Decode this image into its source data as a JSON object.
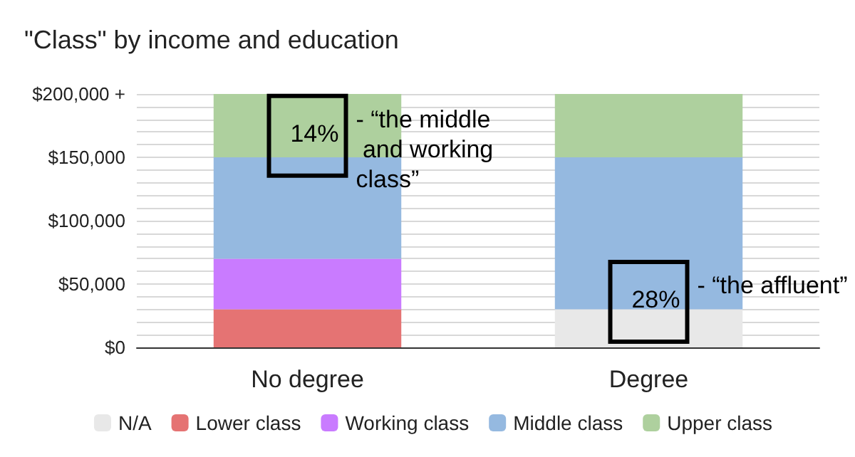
{
  "chart_data": {
    "type": "bar",
    "title": "\"Class\" by income and education",
    "stacked": true,
    "categories": [
      "No degree",
      "Degree"
    ],
    "series": [
      {
        "name": "N/A",
        "color": "#e8e8e8",
        "values": [
          0,
          30000
        ]
      },
      {
        "name": "Lower class",
        "color": "#e57373",
        "values": [
          30000,
          0
        ]
      },
      {
        "name": "Working class",
        "color": "#c97bff",
        "values": [
          40000,
          0
        ]
      },
      {
        "name": "Middle class",
        "color": "#95b9e0",
        "values": [
          80000,
          120000
        ]
      },
      {
        "name": "Upper class",
        "color": "#aed09e",
        "values": [
          50000,
          50000
        ]
      }
    ],
    "ylim": [
      0,
      200000
    ],
    "yticks": [
      {
        "value": 0,
        "label": "$0"
      },
      {
        "value": 10000,
        "label": null
      },
      {
        "value": 20000,
        "label": null
      },
      {
        "value": 30000,
        "label": null
      },
      {
        "value": 40000,
        "label": null
      },
      {
        "value": 50000,
        "label": "$50,000"
      },
      {
        "value": 60000,
        "label": null
      },
      {
        "value": 70000,
        "label": null
      },
      {
        "value": 80000,
        "label": null
      },
      {
        "value": 90000,
        "label": null
      },
      {
        "value": 100000,
        "label": "$100,000"
      },
      {
        "value": 110000,
        "label": null
      },
      {
        "value": 120000,
        "label": null
      },
      {
        "value": 130000,
        "label": null
      },
      {
        "value": 140000,
        "label": null
      },
      {
        "value": 150000,
        "label": "$150,000"
      },
      {
        "value": 160000,
        "label": null
      },
      {
        "value": 170000,
        "label": null
      },
      {
        "value": 180000,
        "label": null
      },
      {
        "value": 190000,
        "label": null
      },
      {
        "value": 200000,
        "label": "$200,000 +"
      }
    ],
    "grid": "y",
    "legend": "bottom",
    "annotations": [
      "14%",
      "- “the middle and working class”",
      "28%",
      "- “the affluent”"
    ]
  }
}
